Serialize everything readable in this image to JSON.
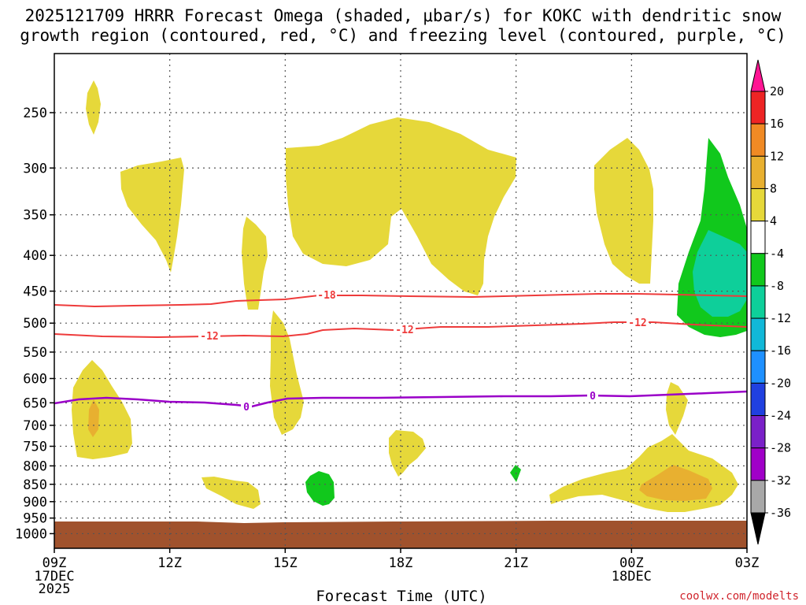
{
  "chart_data": {
    "type": "contour-time-height",
    "title_line1": "2025121709 HRRR Forecast Omega (shaded, μbar/s) for KOKC with dendritic snow",
    "title_line2": "growth region (contoured, red, °C) and freezing level (contoured, purple, °C)",
    "xlabel": "Forecast Time (UTC)",
    "credit": "coolwx.com/modelts",
    "x_range_hours": [
      0,
      18
    ],
    "x_ticks": [
      {
        "hour": 0,
        "label": "09Z",
        "sub1": "17DEC",
        "sub2": "2025"
      },
      {
        "hour": 3,
        "label": "12Z"
      },
      {
        "hour": 6,
        "label": "15Z"
      },
      {
        "hour": 9,
        "label": "18Z"
      },
      {
        "hour": 12,
        "label": "21Z"
      },
      {
        "hour": 15,
        "label": "00Z",
        "sub1": "18DEC"
      },
      {
        "hour": 18,
        "label": "03Z"
      }
    ],
    "y_levels_hPa": [
      "250",
      "300",
      "350",
      "400",
      "450",
      "500",
      "550",
      "600",
      "650",
      "700",
      "750",
      "800",
      "850",
      "900",
      "950",
      "1000"
    ],
    "colorbar": {
      "units": "μbar/s",
      "tick_labels": [
        "20",
        "16",
        "12",
        "8",
        "4",
        "-4",
        "-8",
        "-12",
        "-16",
        "-20",
        "-24",
        "-28",
        "-32",
        "-36"
      ],
      "colors": [
        "#ff1493",
        "#ee2424",
        "#f08a24",
        "#e8b030",
        "#e6d83a",
        "#ffffff",
        "#11c81c",
        "#0ecf9a",
        "#11b8d8",
        "#1e90ff",
        "#2040e0",
        "#7a20c8",
        "#a000c8",
        "#a8a8a8",
        "#000000"
      ]
    },
    "contours": {
      "dendritic_snow_growth_region_C": [
        {
          "value": "-18",
          "color": "#ee3b3b",
          "label_hours": [
            3.7
          ],
          "approx_level_hPa": 460
        },
        {
          "value": "-12",
          "color": "#ee3b3b",
          "label_hours": [
            3.0,
            9.0,
            15.0
          ],
          "approx_level_hPa": 512
        }
      ],
      "freezing_level_C": [
        {
          "value": "0",
          "color": "#9a00c8",
          "label_hours": [
            5.0,
            14.0
          ],
          "approx_level_hPa": 640
        }
      ]
    },
    "shaded_regions": [
      {
        "category": "4 to 8 (ascent)",
        "time_hours": [
          0.8,
          1.1
        ],
        "levels_hPa": [
          220,
          270
        ]
      },
      {
        "category": "4 to 8 (ascent)",
        "time_hours": [
          1.7,
          3.2
        ],
        "levels_hPa": [
          290,
          425
        ]
      },
      {
        "category": "4 to 8 (ascent)",
        "time_hours": [
          5.9,
          12.4
        ],
        "levels_hPa": [
          255,
          455
        ]
      },
      {
        "category": "4 to 8 (ascent)",
        "time_hours": [
          14.4,
          15.6
        ],
        "levels_hPa": [
          270,
          450
        ]
      },
      {
        "category": "-4 to -8 (descent)",
        "time_hours": [
          16.1,
          18.0
        ],
        "levels_hPa": [
          270,
          525
        ]
      },
      {
        "category": "-8 to -12 (descent)",
        "time_hours": [
          16.4,
          18.0
        ],
        "levels_hPa": [
          370,
          490
        ]
      },
      {
        "category": "4 to 8 (ascent)",
        "time_hours": [
          4.8,
          5.3
        ],
        "levels_hPa": [
          355,
          475
        ]
      },
      {
        "category": "4 to 8 (ascent)",
        "time_hours": [
          5.6,
          6.6
        ],
        "levels_hPa": [
          490,
          690
        ]
      },
      {
        "category": "4 to 8 (ascent)",
        "time_hours": [
          0.5,
          2.0
        ],
        "levels_hPa": [
          565,
          835
        ]
      },
      {
        "category": "8 to 12 (ascent)",
        "time_hours": [
          0.9,
          1.2
        ],
        "levels_hPa": [
          680,
          760
        ]
      },
      {
        "category": "4 to 8 (ascent)",
        "time_hours": [
          3.6,
          5.2
        ],
        "levels_hPa": [
          830,
          930
        ]
      },
      {
        "category": "-4 to -8 (descent)",
        "time_hours": [
          6.5,
          7.3
        ],
        "levels_hPa": [
          830,
          915
        ]
      },
      {
        "category": "4 to 8 (ascent)",
        "time_hours": [
          8.8,
          9.7
        ],
        "levels_hPa": [
          705,
          825
        ]
      },
      {
        "category": "-4 to -8 (descent)",
        "time_hours": [
          11.8,
          12.1
        ],
        "levels_hPa": [
          790,
          830
        ]
      },
      {
        "category": "4 to 8 (ascent)",
        "time_hours": [
          13.0,
          17.8
        ],
        "levels_hPa": [
          745,
          935
        ]
      },
      {
        "category": "8 to 12 (ascent)",
        "time_hours": [
          15.2,
          16.9
        ],
        "levels_hPa": [
          800,
          905
        ]
      },
      {
        "category": "4 to 8 (ascent)",
        "time_hours": [
          15.9,
          16.5
        ],
        "levels_hPa": [
          610,
          705
        ]
      }
    ],
    "ground": {
      "color": "#a0522d",
      "levels_hPa": [
        960,
        1000
      ]
    }
  }
}
